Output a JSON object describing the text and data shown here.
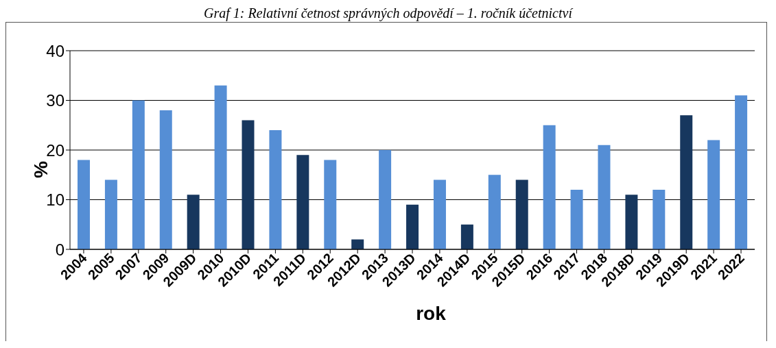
{
  "chart_data": {
    "type": "bar",
    "title": "Graf 1: Relativní četnost správných odpovědí – 1. ročník účetnictví",
    "xlabel": "rok",
    "ylabel": "%",
    "categories": [
      "2004",
      "2005",
      "2007",
      "2009",
      "2009D",
      "2010",
      "2010D",
      "2011",
      "2011D",
      "2012",
      "2012D",
      "2013",
      "2013D",
      "2014",
      "2014D",
      "2015",
      "2015D",
      "2016",
      "2017",
      "2018",
      "2018D",
      "2019",
      "2019D",
      "2021",
      "2022"
    ],
    "values": [
      18,
      14,
      30,
      28,
      11,
      33,
      26,
      24,
      19,
      18,
      2,
      20,
      9,
      14,
      5,
      15,
      14,
      25,
      12,
      21,
      11,
      12,
      27,
      22,
      31
    ],
    "colors": [
      "#558ed5",
      "#558ed5",
      "#558ed5",
      "#558ed5",
      "#17375e",
      "#558ed5",
      "#17375e",
      "#558ed5",
      "#17375e",
      "#558ed5",
      "#17375e",
      "#558ed5",
      "#17375e",
      "#558ed5",
      "#17375e",
      "#558ed5",
      "#17375e",
      "#558ed5",
      "#558ed5",
      "#558ed5",
      "#17375e",
      "#558ed5",
      "#17375e",
      "#558ed5",
      "#558ed5"
    ],
    "ylim": [
      0,
      40
    ],
    "yticks": [
      0,
      10,
      20,
      30,
      40
    ],
    "grid": "y"
  }
}
